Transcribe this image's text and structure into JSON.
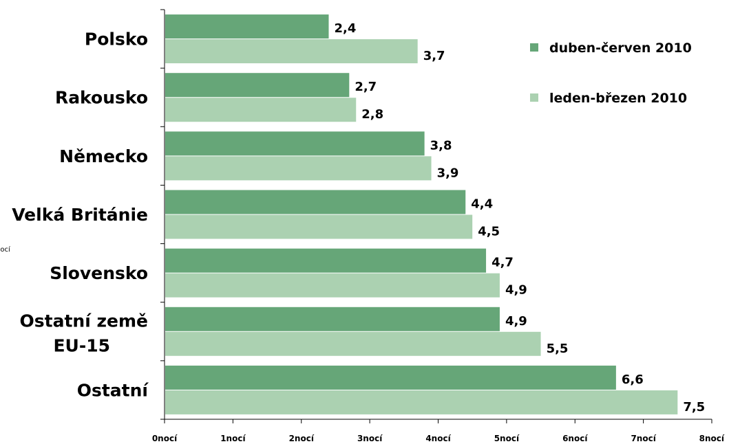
{
  "chart_data": {
    "type": "bar",
    "orientation": "horizontal",
    "categories": [
      "Polsko",
      "Rakousko",
      "Německo",
      "Velká Británie",
      "Slovensko",
      "Ostatní země EU-15",
      "Ostatní"
    ],
    "series": [
      {
        "name": "duben-červen 2010",
        "color": "#66a678",
        "values": [
          2.4,
          2.7,
          3.8,
          4.4,
          4.7,
          4.9,
          6.6
        ],
        "labels": [
          "2,4",
          "2,7",
          "3,8",
          "4,4",
          "4,7",
          "4,9",
          "6,6"
        ]
      },
      {
        "name": "leden-březen 2010",
        "color": "#abd1b1",
        "values": [
          3.7,
          2.8,
          3.9,
          4.5,
          4.9,
          5.5,
          7.5
        ],
        "labels": [
          "3,7",
          "2,8",
          "3,9",
          "4,5",
          "4,9",
          "5,5",
          "7,5"
        ]
      }
    ],
    "xlim": [
      0,
      8
    ],
    "xticks": [
      0,
      1,
      2,
      3,
      4,
      5,
      6,
      7,
      8
    ],
    "xtick_labels": [
      "0nocí",
      "1nocí",
      "2nocí",
      "3nocí",
      "4nocí",
      "5nocí",
      "6nocí",
      "7nocí",
      "8nocí"
    ],
    "ylabel": "nocí",
    "legend_position": "top-right",
    "grid": false
  }
}
